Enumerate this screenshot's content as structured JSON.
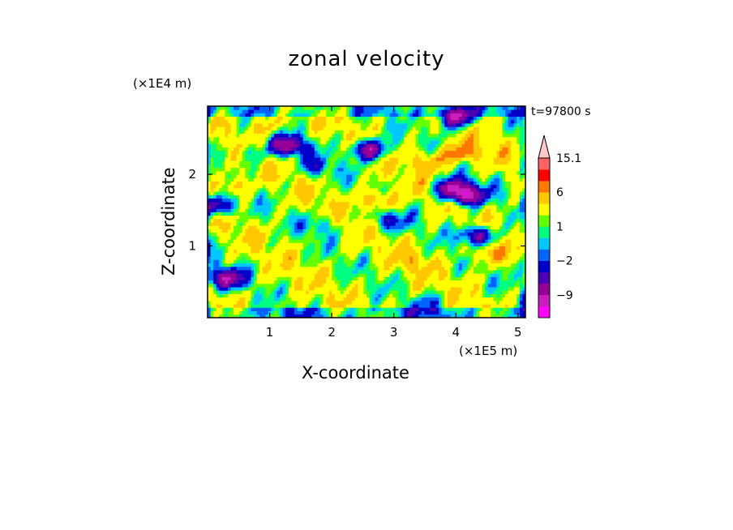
{
  "chart_data": {
    "type": "heatmap",
    "title": "zonal velocity",
    "xlabel": "X-coordinate",
    "ylabel": "Z-coordinate",
    "x_unit": "(×1E5 m)",
    "y_unit": "(×1E4 m)",
    "time_label": "t=97800 s",
    "x_ticks": [
      "1",
      "2",
      "3",
      "4",
      "5"
    ],
    "y_ticks": [
      "1",
      "2"
    ],
    "xlim": [
      0,
      5.12
    ],
    "ylim": [
      0,
      2.95
    ],
    "colorbar": {
      "levels": [
        -15,
        -12,
        -9,
        -6,
        -4,
        -2,
        -1,
        0,
        1,
        2,
        4,
        6,
        9,
        12,
        15.1
      ],
      "colors": [
        "#ff00ff",
        "#c81ebe",
        "#960096",
        "#4b00b4",
        "#0000c8",
        "#0064ff",
        "#00c8ff",
        "#00ff80",
        "#64ff00",
        "#ffff00",
        "#ffc800",
        "#ff7800",
        "#ff0000",
        "#ff6464",
        "#ffc8c8"
      ],
      "tick_labels": [
        "15.1",
        "6",
        "1",
        "−2",
        "−9"
      ]
    },
    "field_features": [
      {
        "x": 1.3,
        "z": 2.4,
        "value": -8
      },
      {
        "x": 2.6,
        "z": 2.35,
        "value": -9
      },
      {
        "x": 0.3,
        "z": 0.55,
        "value": -8
      },
      {
        "x": 0.15,
        "z": 1.55,
        "value": -6
      },
      {
        "x": 3.95,
        "z": 1.8,
        "value": -9
      },
      {
        "x": 4.2,
        "z": 1.7,
        "value": -8
      },
      {
        "x": 4.0,
        "z": 2.8,
        "value": -10
      },
      {
        "x": 4.35,
        "z": 1.15,
        "value": -7
      },
      {
        "x": 2.9,
        "z": 1.35,
        "value": -3
      },
      {
        "x": 4.1,
        "z": 2.3,
        "value": 8
      },
      {
        "x": 2.75,
        "z": 1.65,
        "value": 7
      },
      {
        "x": 3.6,
        "z": 2.2,
        "value": 6
      },
      {
        "x": 0.4,
        "z": 1.85,
        "value": 6
      },
      {
        "x": 4.5,
        "z": 0.9,
        "value": 6
      },
      {
        "x": 1.0,
        "z": 2.7,
        "value": 5
      },
      {
        "x": 2.2,
        "z": 0.7,
        "value": 2
      },
      {
        "x": 3.3,
        "z": 0.8,
        "value": 4
      },
      {
        "x": 0.9,
        "z": 0.3,
        "value": 2
      },
      {
        "x": 1.8,
        "z": 1.3,
        "value": -1
      },
      {
        "x": 3.6,
        "z": 0.2,
        "value": -1
      },
      {
        "x": 0.7,
        "z": 2.3,
        "value": -1
      },
      {
        "x": 1.75,
        "z": 2.1,
        "value": -2
      }
    ]
  }
}
